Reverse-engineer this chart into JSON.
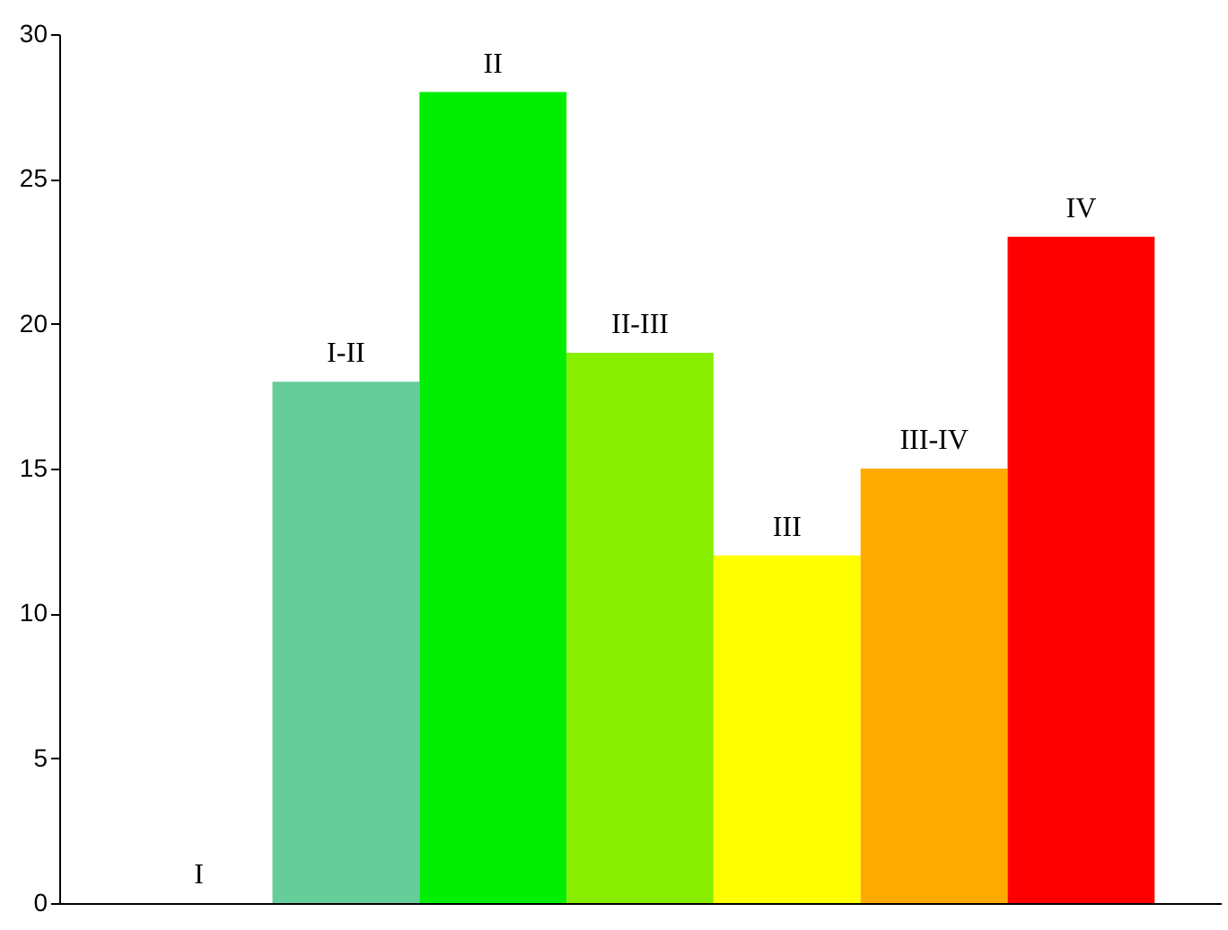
{
  "chart_data": {
    "type": "bar",
    "categories": [
      "I",
      "I-II",
      "II",
      "II-III",
      "III",
      "III-IV",
      "IV"
    ],
    "values": [
      0,
      18,
      28,
      19,
      12,
      15,
      23
    ],
    "colors": [
      "#ffffff",
      "#66cc99",
      "#00ee00",
      "#88ee00",
      "#ffff00",
      "#ffaa00",
      "#ff0000"
    ],
    "ylim": [
      0,
      30
    ],
    "yticks": [
      0,
      5,
      10,
      15,
      20,
      25,
      30
    ],
    "grid": false,
    "tick_labels": "y",
    "data_labels": false
  }
}
